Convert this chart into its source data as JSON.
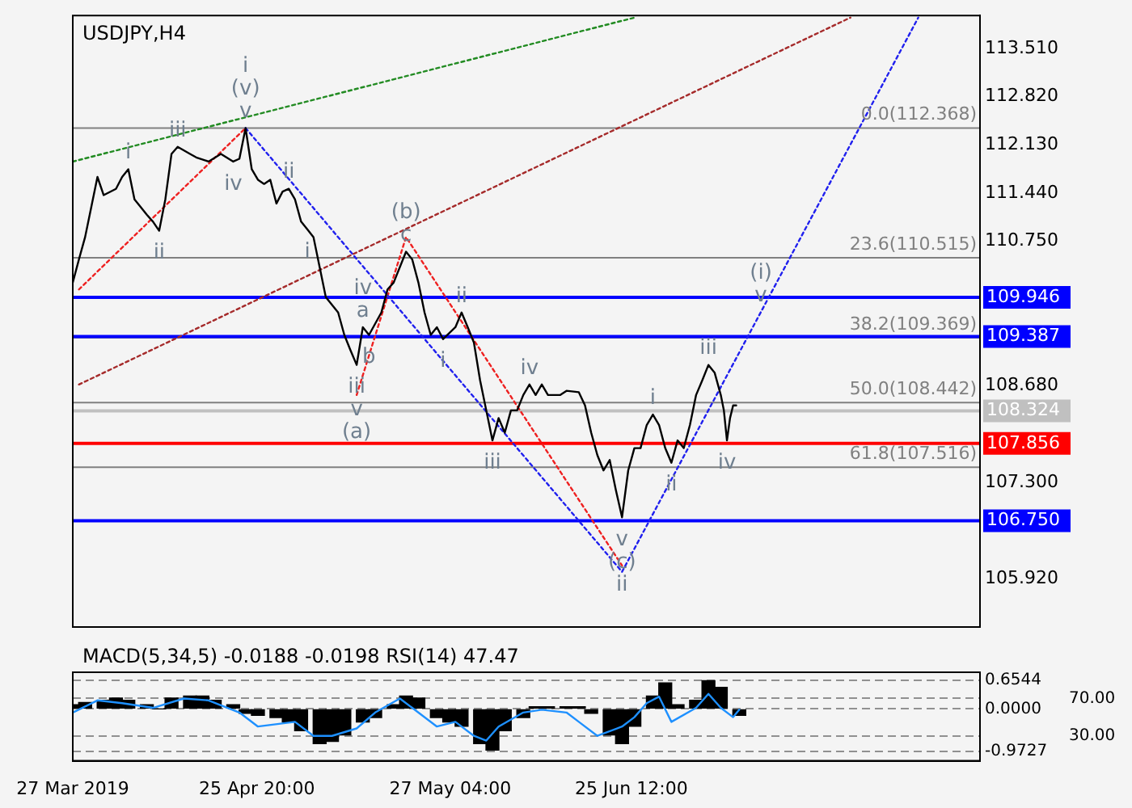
{
  "chart_data": [
    {
      "type": "line",
      "title": "USDJPY,H4",
      "xlim": [
        "2019-03-27",
        "2019-08-21"
      ],
      "ylim": [
        105.23,
        113.98
      ],
      "yticks": [
        {
          "value": 113.51,
          "label": "113.510"
        },
        {
          "value": 112.82,
          "label": "112.820"
        },
        {
          "value": 112.13,
          "label": "112.130"
        },
        {
          "value": 111.44,
          "label": "111.440"
        },
        {
          "value": 110.75,
          "label": "110.750"
        },
        {
          "value": 108.68,
          "label": "108.680"
        },
        {
          "value": 107.3,
          "label": "107.300"
        },
        {
          "value": 105.92,
          "label": "105.920"
        }
      ],
      "tick_labels": "y",
      "grid": false,
      "legend": false,
      "marker": "none",
      "series": [
        {
          "color": "#000000",
          "x": [
            "2019-03-27",
            "2019-03-28",
            "2019-03-29",
            "2019-03-30",
            "2019-03-31",
            "2019-04-01",
            "2019-04-03",
            "2019-04-04",
            "2019-04-05",
            "2019-04-06",
            "2019-04-08",
            "2019-04-09",
            "2019-04-10",
            "2019-04-11",
            "2019-04-12",
            "2019-04-13",
            "2019-04-15",
            "2019-04-16",
            "2019-04-18",
            "2019-04-20",
            "2019-04-22",
            "2019-04-23",
            "2019-04-24",
            "2019-04-25",
            "2019-04-26",
            "2019-04-27",
            "2019-04-28",
            "2019-04-29",
            "2019-04-30",
            "2019-05-01",
            "2019-05-02",
            "2019-05-03",
            "2019-05-04",
            "2019-05-05",
            "2019-05-06",
            "2019-05-07",
            "2019-05-08",
            "2019-05-09",
            "2019-05-10",
            "2019-05-11",
            "2019-05-12",
            "2019-05-13",
            "2019-05-14",
            "2019-05-16",
            "2019-05-17",
            "2019-05-18",
            "2019-05-20",
            "2019-05-21",
            "2019-05-22",
            "2019-05-23",
            "2019-05-24",
            "2019-05-25",
            "2019-05-26",
            "2019-05-28",
            "2019-05-29",
            "2019-05-30",
            "2019-05-31",
            "2019-06-01",
            "2019-06-02",
            "2019-06-03",
            "2019-06-04",
            "2019-06-05",
            "2019-06-06",
            "2019-06-07",
            "2019-06-08",
            "2019-06-09",
            "2019-06-10",
            "2019-06-11",
            "2019-06-12",
            "2019-06-14",
            "2019-06-15",
            "2019-06-17",
            "2019-06-18",
            "2019-06-19",
            "2019-06-20",
            "2019-06-21",
            "2019-06-22",
            "2019-06-23",
            "2019-06-24",
            "2019-06-25",
            "2019-06-26",
            "2019-06-27",
            "2019-06-28",
            "2019-06-29",
            "2019-06-30",
            "2019-07-01",
            "2019-07-02",
            "2019-07-03",
            "2019-07-04",
            "2019-07-05",
            "2019-07-06",
            "2019-07-07",
            "2019-07-08",
            "2019-07-09",
            "2019-07-10",
            "2019-07-10T12:00",
            "2019-07-11",
            "2019-07-11T12:00",
            "2019-07-12",
            "2019-07-12T12:00"
          ],
          "values": [
            110.16,
            110.49,
            110.81,
            111.24,
            111.67,
            111.41,
            111.5,
            111.67,
            111.78,
            111.35,
            111.13,
            111.03,
            110.9,
            111.35,
            112.0,
            112.1,
            112.0,
            111.95,
            111.89,
            112.0,
            111.89,
            111.93,
            112.37,
            111.78,
            111.63,
            111.57,
            111.63,
            111.29,
            111.46,
            111.5,
            111.35,
            111.03,
            110.92,
            110.81,
            110.38,
            109.95,
            109.84,
            109.73,
            109.41,
            109.19,
            108.98,
            109.52,
            109.41,
            109.73,
            110.06,
            110.16,
            110.6,
            110.49,
            110.16,
            109.73,
            109.41,
            109.52,
            109.35,
            109.52,
            109.73,
            109.52,
            109.3,
            108.76,
            108.33,
            107.9,
            108.22,
            108.01,
            108.33,
            108.33,
            108.55,
            108.7,
            108.55,
            108.7,
            108.55,
            108.55,
            108.61,
            108.59,
            108.4,
            108.01,
            107.69,
            107.47,
            107.62,
            107.19,
            106.8,
            107.47,
            107.79,
            107.79,
            108.12,
            108.27,
            108.12,
            107.79,
            107.58,
            107.9,
            107.79,
            108.12,
            108.55,
            108.76,
            108.98,
            108.87,
            108.55,
            108.33,
            107.9,
            108.22,
            108.4,
            108.4
          ]
        },
        {
          "color": "#228b22",
          "line_style": "dotted",
          "x": [
            "2019-03-27",
            "2019-06-26"
          ],
          "values": [
            111.89,
            113.95
          ]
        },
        {
          "color": "#a52a2a",
          "line_style": "dotted",
          "x": [
            "2019-03-28",
            "2019-07-31"
          ],
          "values": [
            108.7,
            113.95
          ]
        },
        {
          "color": "#ee2020",
          "line_style": "dotted",
          "x": [
            "2019-03-28",
            "2019-04-24"
          ],
          "values": [
            110.06,
            112.37
          ]
        },
        {
          "color": "#2020ee",
          "line_style": "dotted",
          "x": [
            "2019-04-24",
            "2019-06-24",
            "2019-08-11"
          ],
          "values": [
            112.37,
            106.02,
            113.95
          ]
        },
        {
          "color": "#ee2020",
          "line_style": "dotted",
          "x": [
            "2019-05-12",
            "2019-05-20",
            "2019-06-24"
          ],
          "values": [
            108.55,
            110.81,
            106.11
          ]
        }
      ],
      "ref_lines": [
        {
          "axis": "y",
          "value": 112.368,
          "label": "0.0(112.368)"
        },
        {
          "axis": "y",
          "value": 110.515,
          "label": "23.6(110.515)"
        },
        {
          "axis": "y",
          "value": 109.369,
          "label": "38.2(109.369)"
        },
        {
          "axis": "y",
          "value": 108.442,
          "label": "50.0(108.442)"
        },
        {
          "axis": "y",
          "value": 107.516,
          "label": "61.8(107.516)"
        },
        {
          "axis": "y",
          "value": 109.946,
          "label": "109.946",
          "color": "#0000ff"
        },
        {
          "axis": "y",
          "value": 109.387,
          "label": "109.387",
          "color": "#0000ff"
        },
        {
          "axis": "y",
          "value": 108.324,
          "label": "108.324",
          "color": "#c0c0c0"
        },
        {
          "axis": "y",
          "value": 107.856,
          "label": "107.856",
          "color": "#ff0000"
        },
        {
          "axis": "y",
          "value": 106.75,
          "label": "106.750",
          "color": "#0000ff"
        }
      ],
      "annotations": [
        {
          "text": "i",
          "x": "2019-04-05",
          "y": 111.78
        },
        {
          "text": "iii",
          "x": "2019-04-13",
          "y": 112.1
        },
        {
          "text": "ii",
          "x": "2019-04-10",
          "y": 110.9
        },
        {
          "text": "iv",
          "x": "2019-04-22",
          "y": 111.89
        },
        {
          "text": "v",
          "x": "2019-04-24",
          "y": 112.37
        },
        {
          "text": "(v)",
          "x": "2019-04-24",
          "y": 112.37
        },
        {
          "text": "i",
          "x": "2019-04-24",
          "y": 112.37
        },
        {
          "text": "ii",
          "x": "2019-05-01",
          "y": 111.5
        },
        {
          "text": "i",
          "x": "2019-05-04",
          "y": 110.92
        },
        {
          "text": "a",
          "x": "2019-05-13",
          "y": 109.52
        },
        {
          "text": "iv",
          "x": "2019-05-13",
          "y": 109.52
        },
        {
          "text": "iii",
          "x": "2019-05-12",
          "y": 108.98
        },
        {
          "text": "v",
          "x": "2019-05-12",
          "y": 108.98
        },
        {
          "text": "(a)",
          "x": "2019-05-12",
          "y": 108.98
        },
        {
          "text": "b",
          "x": "2019-05-14",
          "y": 109.41
        },
        {
          "text": "c",
          "x": "2019-05-20",
          "y": 110.6
        },
        {
          "text": "(b)",
          "x": "2019-05-20",
          "y": 110.6
        },
        {
          "text": "ii",
          "x": "2019-05-29",
          "y": 109.73
        },
        {
          "text": "i",
          "x": "2019-05-26",
          "y": 109.35
        },
        {
          "text": "iii",
          "x": "2019-06-03",
          "y": 107.9
        },
        {
          "text": "iv",
          "x": "2019-06-09",
          "y": 108.7
        },
        {
          "text": "v",
          "x": "2019-06-24",
          "y": 106.8
        },
        {
          "text": "(c)",
          "x": "2019-06-24",
          "y": 106.8
        },
        {
          "text": "ii",
          "x": "2019-06-24",
          "y": 106.8
        },
        {
          "text": "i",
          "x": "2019-06-29",
          "y": 108.27
        },
        {
          "text": "ii",
          "x": "2019-07-02",
          "y": 107.58
        },
        {
          "text": "iii",
          "x": "2019-07-08",
          "y": 108.98
        },
        {
          "text": "iv",
          "x": "2019-07-11",
          "y": 107.9
        },
        {
          "text": "v",
          "x": "2019-07-16T12:00",
          "y": 109.74
        },
        {
          "text": "(i)",
          "x": "2019-07-16T12:00",
          "y": 109.74
        }
      ]
    },
    {
      "type": "bar",
      "title": "MACD(5,34,5) -0.0188 -0.0198 RSI(14) 47.47",
      "xlim": [
        "2019-03-27",
        "2019-08-21"
      ],
      "xticks": [
        {
          "value": "2019-03-27T00:00",
          "label": "27 Mar 2019"
        },
        {
          "value": "2019-04-25T20:00",
          "label": "25 Apr 20:00"
        },
        {
          "value": "2019-05-27T04:00",
          "label": "27 May 04:00"
        },
        {
          "value": "2019-06-25T12:00",
          "label": "25 Jun 12:00"
        }
      ],
      "ylim": [
        -1.196,
        0.846
      ],
      "yticks": [
        0.6544,
        {
          "value": 0,
          "label": "0.0000"
        },
        -0.9727
      ],
      "y2lim": [
        3.3,
        98.1
      ],
      "y2ticks": [
        {
          "value": 70,
          "label": "70.00"
        },
        {
          "value": 30,
          "label": "30.00"
        }
      ],
      "grid": "y",
      "legend": false,
      "series": [
        {
          "color": "#000000",
          "x": [
            "2019-03-27",
            "2019-03-29",
            "2019-04-01",
            "2019-04-03",
            "2019-04-05",
            "2019-04-08",
            "2019-04-10",
            "2019-04-12",
            "2019-04-15",
            "2019-04-17",
            "2019-04-19",
            "2019-04-22",
            "2019-04-24",
            "2019-04-26",
            "2019-04-29",
            "2019-05-01",
            "2019-05-03",
            "2019-05-06",
            "2019-05-08",
            "2019-05-10",
            "2019-05-13",
            "2019-05-15",
            "2019-05-18",
            "2019-05-20",
            "2019-05-22",
            "2019-05-25",
            "2019-05-27",
            "2019-05-29",
            "2019-06-01",
            "2019-06-03",
            "2019-06-05",
            "2019-06-08",
            "2019-06-10",
            "2019-06-12",
            "2019-06-15",
            "2019-06-17",
            "2019-06-19",
            "2019-06-22",
            "2019-06-24",
            "2019-06-26",
            "2019-06-29",
            "2019-07-01",
            "2019-07-03",
            "2019-07-06",
            "2019-07-08",
            "2019-07-10",
            "2019-07-13"
          ],
          "values": [
            0.1,
            0.15,
            0.2,
            0.25,
            0.2,
            0.1,
            0,
            0.25,
            0.3,
            0.3,
            0.2,
            0.1,
            -0.1,
            -0.15,
            -0.2,
            -0.3,
            -0.5,
            -0.8,
            -0.75,
            -0.6,
            -0.3,
            -0.2,
            0.1,
            0.3,
            0.25,
            -0.2,
            -0.3,
            -0.4,
            -0.8,
            -0.95,
            -0.5,
            -0.2,
            0.05,
            0.05,
            0.05,
            0.05,
            -0.1,
            -0.6,
            -0.8,
            -0.4,
            0.3,
            0.6,
            0.1,
            0.2,
            0.65,
            0.5,
            -0.15
          ]
        },
        {
          "type": "line",
          "axis": "y2",
          "color": "#1e90ff",
          "marker": "none",
          "x": [
            "2019-03-27",
            "2019-03-31",
            "2019-04-04",
            "2019-04-09",
            "2019-04-14",
            "2019-04-18",
            "2019-04-23",
            "2019-04-26",
            "2019-05-02",
            "2019-05-05",
            "2019-05-08",
            "2019-05-12",
            "2019-05-15",
            "2019-05-19",
            "2019-05-21",
            "2019-05-25",
            "2019-05-28",
            "2019-05-31",
            "2019-06-02",
            "2019-06-04",
            "2019-06-08",
            "2019-06-11",
            "2019-06-15",
            "2019-06-17",
            "2019-06-20",
            "2019-06-24",
            "2019-06-26",
            "2019-06-28",
            "2019-06-30",
            "2019-07-02",
            "2019-07-06",
            "2019-07-08",
            "2019-07-10",
            "2019-07-12",
            "2019-07-13"
          ],
          "values": [
            55,
            68,
            65,
            60,
            70,
            68,
            55,
            40,
            45,
            30,
            30,
            38,
            55,
            70,
            60,
            40,
            45,
            30,
            25,
            40,
            55,
            58,
            55,
            45,
            30,
            40,
            50,
            65,
            72,
            45,
            60,
            75,
            60,
            50,
            58
          ]
        }
      ]
    }
  ]
}
